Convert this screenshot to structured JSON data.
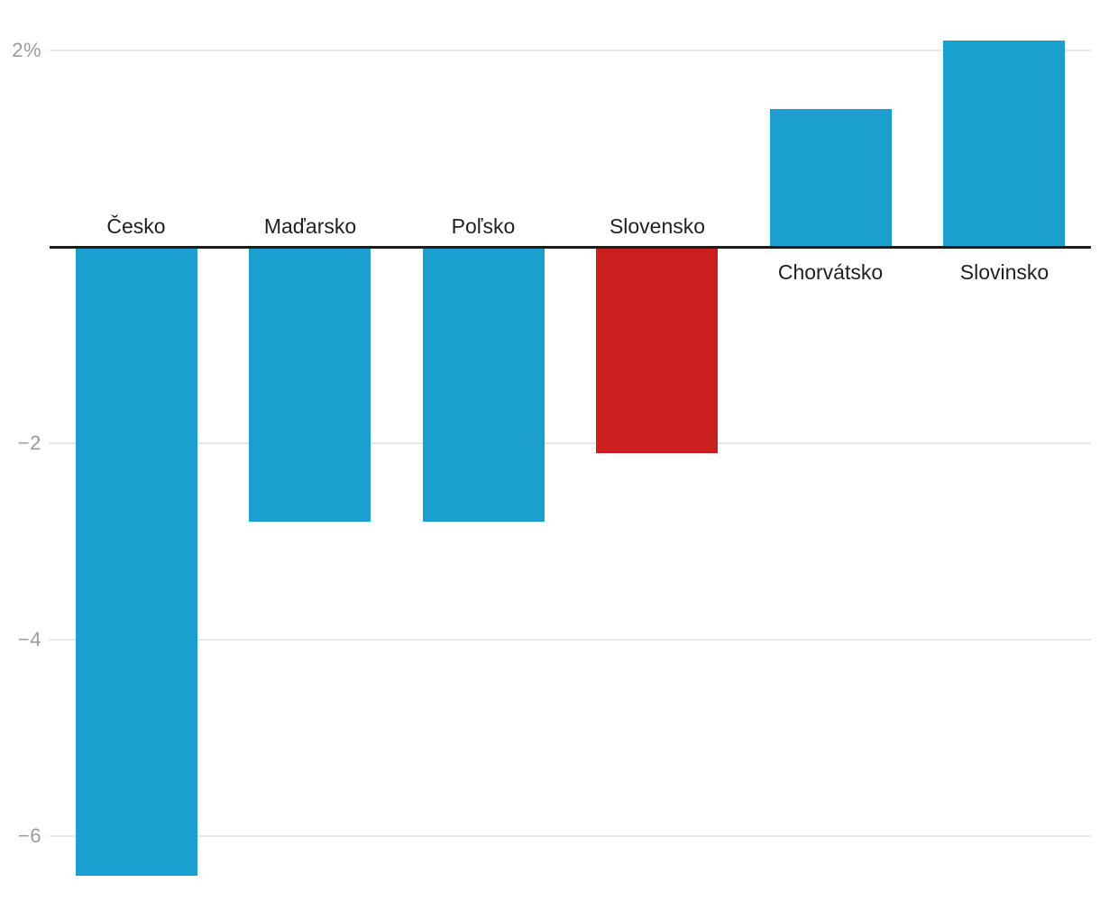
{
  "chart_data": {
    "type": "bar",
    "categories": [
      "Česko",
      "Maďarsko",
      "Poľsko",
      "Slovensko",
      "Chorvátsko",
      "Slovinsko"
    ],
    "values": [
      -6.4,
      -2.8,
      -2.8,
      -2.1,
      1.4,
      2.1
    ],
    "bar_colors": [
      "#1a9fce",
      "#1a9fce",
      "#1a9fce",
      "#c91f1e",
      "#1a9fce",
      "#1a9fce"
    ],
    "title": "",
    "xlabel": "",
    "ylabel": "",
    "ylim": [
      -6.6,
      2.3
    ],
    "yticks": [
      {
        "value": 2,
        "label": "2%"
      },
      {
        "value": -2,
        "label": "−2"
      },
      {
        "value": -4,
        "label": "−4"
      },
      {
        "value": -6,
        "label": "−6"
      }
    ],
    "grid": true,
    "legend": "none",
    "baseline_value": 0
  },
  "colors": {
    "bar_blue": "#1a9fce",
    "bar_highlight_red": "#c91f1e",
    "gridline": "#e7e7e7",
    "axis_line": "#1c1c1c",
    "tick_label": "#9b9b9b",
    "category_label": "#212121",
    "background": "#ffffff"
  }
}
